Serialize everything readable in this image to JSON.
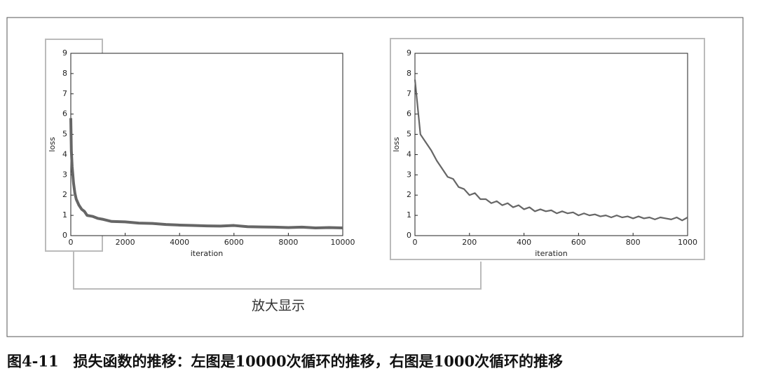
{
  "chart_data": [
    {
      "type": "line",
      "xlabel": "iteration",
      "ylabel": "loss",
      "x": [
        0,
        20,
        50,
        100,
        150,
        200,
        300,
        400,
        500,
        600,
        800,
        1000,
        1200,
        1500,
        2000,
        2500,
        3000,
        3500,
        4000,
        4500,
        5000,
        5500,
        6000,
        6500,
        7000,
        7500,
        8000,
        8500,
        9000,
        9500,
        10000
      ],
      "series": [
        {
          "color": "#666666",
          "values": [
            5.8,
            4.2,
            3.4,
            2.6,
            2.1,
            1.8,
            1.5,
            1.3,
            1.2,
            1.0,
            0.95,
            0.85,
            0.8,
            0.7,
            0.68,
            0.62,
            0.6,
            0.55,
            0.52,
            0.5,
            0.48,
            0.47,
            0.5,
            0.44,
            0.43,
            0.42,
            0.4,
            0.42,
            0.38,
            0.4,
            0.38
          ]
        }
      ],
      "xlim": [
        0,
        10000
      ],
      "xticks": [
        0,
        2000,
        4000,
        6000,
        8000,
        10000
      ],
      "ylim": [
        0,
        9
      ],
      "yticks": [
        0,
        1,
        2,
        3,
        4,
        5,
        6,
        7,
        8,
        9
      ]
    },
    {
      "type": "line",
      "xlabel": "iteration",
      "ylabel": "loss",
      "x": [
        0,
        20,
        40,
        60,
        80,
        100,
        120,
        140,
        160,
        180,
        200,
        220,
        240,
        260,
        280,
        300,
        320,
        340,
        360,
        380,
        400,
        420,
        440,
        460,
        480,
        500,
        520,
        540,
        560,
        580,
        600,
        620,
        640,
        660,
        680,
        700,
        720,
        740,
        760,
        780,
        800,
        820,
        840,
        860,
        880,
        900,
        920,
        940,
        960,
        980,
        1000
      ],
      "series": [
        {
          "color": "#666666",
          "values": [
            7.7,
            5.0,
            4.6,
            4.2,
            3.7,
            3.3,
            2.9,
            2.8,
            2.4,
            2.3,
            2.0,
            2.1,
            1.8,
            1.8,
            1.6,
            1.7,
            1.5,
            1.6,
            1.4,
            1.5,
            1.3,
            1.4,
            1.2,
            1.3,
            1.2,
            1.25,
            1.1,
            1.2,
            1.1,
            1.15,
            1.0,
            1.1,
            1.0,
            1.05,
            0.95,
            1.0,
            0.9,
            1.0,
            0.9,
            0.95,
            0.85,
            0.95,
            0.85,
            0.9,
            0.8,
            0.9,
            0.85,
            0.8,
            0.9,
            0.75,
            0.9
          ]
        }
      ],
      "xlim": [
        0,
        1000
      ],
      "xticks": [
        0,
        200,
        400,
        600,
        800,
        1000
      ],
      "ylim": [
        0,
        9
      ],
      "yticks": [
        0,
        1,
        2,
        3,
        4,
        5,
        6,
        7,
        8,
        9
      ]
    }
  ],
  "annotation": "放大显示",
  "caption": "图4-11　损失函数的推移：左图是10000次循环的推移，右图是1000次循环的推移"
}
